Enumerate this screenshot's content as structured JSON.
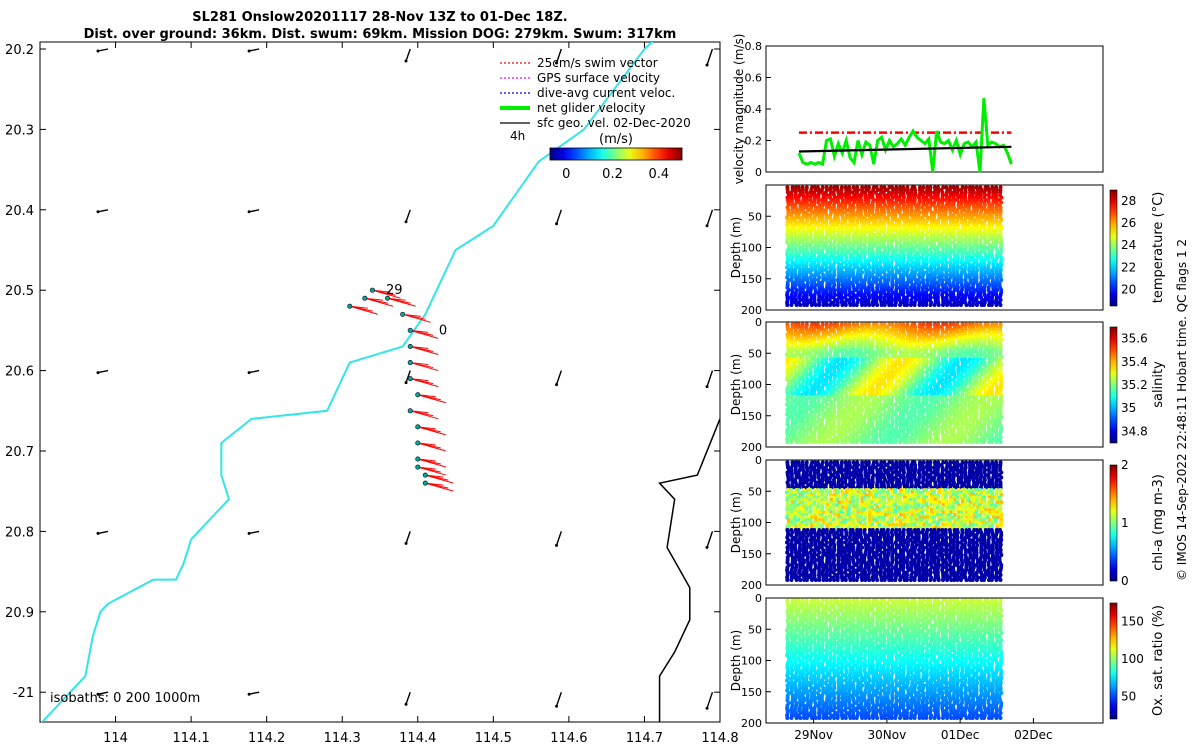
{
  "title_line1": "SL281 Onslow20201117 28-Nov 13Z to 01-Dec 18Z.",
  "title_line2": "Dist. over ground: 36km. Dist. swum: 69km. Mission DOG: 279km. Swum: 317km",
  "side_text": "© IMOS 14-Sep-2022 22:48:11 Hobart time. QC flags 1  2",
  "chart_data": [
    {
      "type": "scatter",
      "name": "track-map",
      "xlim": [
        113.9,
        114.8
      ],
      "ylim": [
        20.2,
        21.04
      ],
      "y_reversed": true,
      "xticks": [
        "114",
        "114.1",
        "114.2",
        "114.3",
        "114.4",
        "114.5",
        "114.6",
        "114.7",
        "114.8"
      ],
      "xtick_values": [
        114,
        114.1,
        114.2,
        114.3,
        114.4,
        114.5,
        114.6,
        114.7,
        114.8
      ],
      "yticks": [
        "20.2",
        "20.3",
        "20.4",
        "20.5",
        "20.6",
        "20.7",
        "20.8",
        "20.9",
        "-21"
      ],
      "ytick_values": [
        20.2,
        20.3,
        20.4,
        20.5,
        20.6,
        20.7,
        20.8,
        20.9,
        21.0
      ],
      "legend": [
        {
          "label": "25cm/s swim vector",
          "color": "#ff0000",
          "style": "dotted"
        },
        {
          "label": "GPS surface velocity",
          "color": "#ff00ff",
          "style": "dotted"
        },
        {
          "label": "dive-avg current veloc.",
          "color": "#0000ff",
          "style": "dotted"
        },
        {
          "label": "net glider velocity",
          "color": "#00ee00",
          "style": "thick"
        },
        {
          "label": "sfc geo. vel. 02-Dec-2020",
          "color": "#000000",
          "style": "solid"
        }
      ],
      "scale_label": "4h",
      "colorbar": {
        "label": "(m/s)",
        "ticks": [
          "0",
          "0.2",
          "0.4"
        ],
        "tick_values": [
          0,
          0.2,
          0.4
        ],
        "range": [
          -0.07,
          0.5
        ]
      },
      "isobaths_label": "isobaths: 0   200  1000m",
      "coast_color": "#33e6e6",
      "coastline": [
        [
          113.9,
          21.04
        ],
        [
          113.93,
          21.01
        ],
        [
          113.96,
          20.98
        ],
        [
          113.97,
          20.93
        ],
        [
          113.98,
          20.9
        ],
        [
          113.99,
          20.89
        ],
        [
          114.03,
          20.87
        ],
        [
          114.05,
          20.86
        ],
        [
          114.08,
          20.86
        ],
        [
          114.09,
          20.84
        ],
        [
          114.1,
          20.81
        ],
        [
          114.12,
          20.79
        ],
        [
          114.15,
          20.76
        ],
        [
          114.14,
          20.73
        ],
        [
          114.14,
          20.69
        ],
        [
          114.18,
          20.66
        ],
        [
          114.28,
          20.65
        ],
        [
          114.31,
          20.59
        ],
        [
          114.38,
          20.57
        ],
        [
          114.41,
          20.53
        ],
        [
          114.45,
          20.45
        ],
        [
          114.5,
          20.42
        ],
        [
          114.56,
          20.34
        ],
        [
          114.62,
          20.3
        ],
        [
          114.7,
          20.2
        ],
        [
          114.78,
          20.13
        ]
      ],
      "isobath_1000": [
        [
          114.8,
          20.66
        ],
        [
          114.77,
          20.73
        ],
        [
          114.72,
          20.74
        ],
        [
          114.74,
          20.76
        ],
        [
          114.73,
          20.82
        ],
        [
          114.76,
          20.87
        ],
        [
          114.76,
          20.91
        ],
        [
          114.74,
          20.95
        ],
        [
          114.72,
          20.98
        ],
        [
          114.72,
          21.04
        ]
      ],
      "glider_track": [
        [
          114.31,
          20.52
        ],
        [
          114.33,
          20.51
        ],
        [
          114.34,
          20.5
        ],
        [
          114.36,
          20.51
        ],
        [
          114.38,
          20.53
        ],
        [
          114.39,
          20.55
        ],
        [
          114.39,
          20.57
        ],
        [
          114.39,
          20.59
        ],
        [
          114.39,
          20.61
        ],
        [
          114.4,
          20.63
        ],
        [
          114.39,
          20.65
        ],
        [
          114.4,
          20.67
        ],
        [
          114.4,
          20.69
        ],
        [
          114.4,
          20.71
        ],
        [
          114.4,
          20.72
        ],
        [
          114.41,
          20.73
        ],
        [
          114.41,
          20.74
        ]
      ],
      "track_labels": [
        {
          "text": "29",
          "x": 114.35,
          "y": 20.5
        },
        {
          "text": "0",
          "x": 114.42,
          "y": 20.55
        }
      ],
      "geo_velocity_grid": {
        "lons": [
          113.99,
          114.19,
          114.39,
          114.59,
          114.79
        ],
        "lats": [
          20.2,
          20.4,
          20.6,
          20.8,
          21.0
        ]
      }
    },
    {
      "type": "line",
      "name": "velocity-magnitude",
      "ylabel": "velocity magnitude (m/s)",
      "ylim": [
        0,
        0.8
      ],
      "yticks": [
        "0",
        "0.2",
        "0.4",
        "0.6",
        "0.8"
      ],
      "ytick_values": [
        0,
        0.2,
        0.4,
        0.6,
        0.8
      ],
      "xlim": [
        0,
        4.6
      ],
      "series": [
        {
          "color": "#ff0000",
          "style": "dash-dot",
          "values": [
            0.25,
            0.25
          ]
        },
        {
          "color": "#00ee00",
          "style": "thick",
          "values": [
            0.12,
            0.06,
            0.05,
            0.06,
            0.05,
            0.06,
            0.05,
            0.2,
            0.21,
            0.1,
            0.18,
            0.12,
            0.2,
            0.09,
            0.06,
            0.2,
            0.11,
            0.19,
            0.17,
            0.05,
            0.2,
            0.22,
            0.14,
            0.2,
            0.16,
            0.18,
            0.21,
            0.17,
            0.22,
            0.26,
            0.22,
            0.2,
            0.18,
            0.21,
            0.0,
            0.26,
            0.19,
            0.18,
            0.2,
            0.14,
            0.2,
            0.11,
            0.18,
            0.19,
            0.16,
            0.19,
            0.0,
            0.47,
            0.17,
            0.19,
            0.18,
            0.16,
            0.17,
            0.12,
            0.05
          ]
        },
        {
          "color": "#000000",
          "style": "solid",
          "values": [
            0.13,
            0.16
          ]
        }
      ],
      "x_start": 0.45,
      "x_end": 3.35
    },
    {
      "type": "scatter",
      "name": "temperature-section",
      "ylabel": "Depth (m)",
      "ylim": [
        0,
        200
      ],
      "yticks": [
        "50",
        "100",
        "150",
        "200"
      ],
      "ytick_values": [
        50,
        100,
        150,
        200
      ],
      "colorbar": {
        "label": "temperature (°C)",
        "ticks": [
          "20",
          "22",
          "24",
          "26",
          "28"
        ],
        "tick_values": [
          20,
          22,
          24,
          26,
          28
        ],
        "range": [
          18.5,
          29
        ]
      },
      "profile_range": [
        29,
        19
      ],
      "max_depth": 195
    },
    {
      "type": "scatter",
      "name": "salinity-section",
      "ylabel": "Depth (m)",
      "ylim": [
        0,
        200
      ],
      "yticks": [
        "0",
        "50",
        "100",
        "150",
        "200"
      ],
      "ytick_values": [
        0,
        50,
        100,
        150,
        200
      ],
      "colorbar": {
        "label": "salinity",
        "ticks": [
          "34.8",
          "35",
          "35.2",
          "35.4",
          "35.6"
        ],
        "tick_values": [
          34.8,
          35,
          35.2,
          35.4,
          35.6
        ],
        "range": [
          34.7,
          35.7
        ]
      },
      "profile_range": [
        35.05,
        35.0
      ],
      "max_depth": 195
    },
    {
      "type": "scatter",
      "name": "chla-section",
      "ylabel": "Depth (m)",
      "ylim": [
        0,
        200
      ],
      "yticks": [
        "0",
        "50",
        "100",
        "150",
        "200"
      ],
      "ytick_values": [
        0,
        50,
        100,
        150,
        200
      ],
      "colorbar": {
        "label": "chl-a (mg m-3)",
        "ticks": [
          "0",
          "1",
          "2"
        ],
        "tick_values": [
          0,
          1,
          2
        ],
        "range": [
          0,
          2
        ]
      },
      "profile_range": [
        0.1,
        0.1
      ],
      "max_depth": 195
    },
    {
      "type": "scatter",
      "name": "oxygen-section",
      "ylabel": "Depth (m)",
      "ylim": [
        0,
        200
      ],
      "yticks": [
        "0",
        "50",
        "100",
        "150",
        "200"
      ],
      "ytick_values": [
        0,
        50,
        100,
        150,
        200
      ],
      "xticks": [
        "29Nov",
        "30Nov",
        "01Dec",
        "02Dec"
      ],
      "xtick_values": [
        1,
        2,
        3,
        4
      ],
      "colorbar": {
        "label": "Ox. sat. ratio (%)",
        "ticks": [
          "50",
          "100",
          "150"
        ],
        "tick_values": [
          50,
          100,
          150
        ],
        "range": [
          20,
          175
        ]
      },
      "profile_range": [
        105,
        65
      ],
      "max_depth": 195
    }
  ]
}
